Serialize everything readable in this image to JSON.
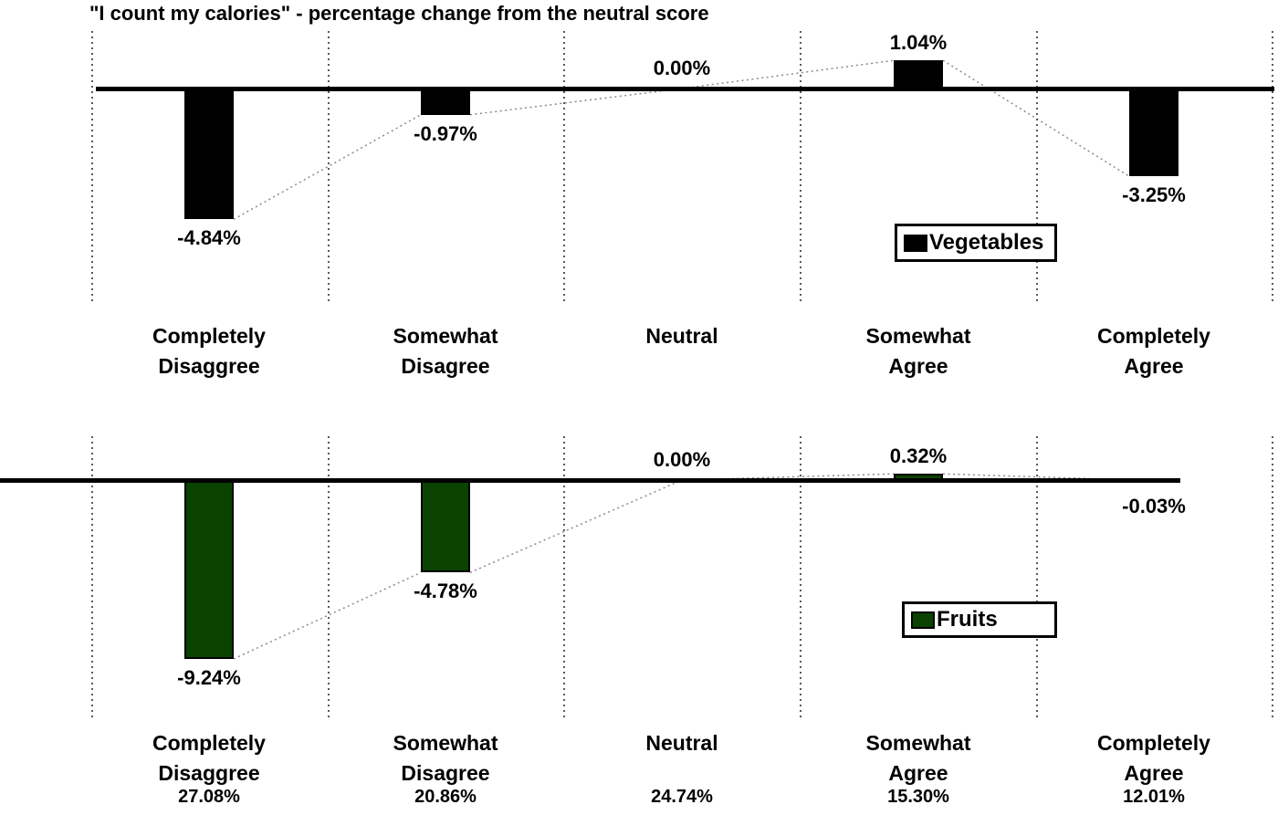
{
  "title": "\"I count my calories\" - percentage change from the neutral score",
  "colors": {
    "vegetables_bar": "#000000",
    "fruits_bar": "#0a4300",
    "axis": "#000000",
    "gridline": "#5a5a5a",
    "trendline": "#8a8a8a",
    "background": "#ffffff",
    "text": "#000000"
  },
  "chart_data": [
    {
      "type": "bar",
      "series_name": "Vegetables",
      "legend_label": "Vegetables",
      "bar_color": "#000000",
      "baseline": 0,
      "grid": "vertical-dotted",
      "trendline_between_points": true,
      "categories": [
        "Completely\nDisaggree",
        "Somewhat\nDisagree",
        "Neutral",
        "Somewhat\nAgree",
        "Completely\nAgree"
      ],
      "values": [
        -4.84,
        -0.97,
        0.0,
        1.04,
        -3.25
      ],
      "value_labels": [
        "-4.84%",
        "-0.97%",
        "0.00%",
        "1.04%",
        "-3.25%"
      ],
      "ylabel": "",
      "xlabel": "",
      "legend_position": "inside-right"
    },
    {
      "type": "bar",
      "series_name": "Fruits",
      "legend_label": "Fruits",
      "bar_color": "#0a4300",
      "baseline": 0,
      "grid": "vertical-dotted",
      "trendline_between_points": true,
      "categories": [
        "Completely\nDisaggree",
        "Somewhat\nDisagree",
        "Neutral",
        "Somewhat\nAgree",
        "Completely\nAgree"
      ],
      "values": [
        -9.24,
        -4.78,
        0.0,
        0.32,
        -0.03
      ],
      "value_labels": [
        "-9.24%",
        "-4.78%",
        "0.00%",
        "0.32%",
        "-0.03%"
      ],
      "category_share_labels": [
        "27.08%",
        "20.86%",
        "24.74%",
        "15.30%",
        "12.01%"
      ],
      "ylabel": "",
      "xlabel": "",
      "legend_position": "inside-right"
    }
  ]
}
